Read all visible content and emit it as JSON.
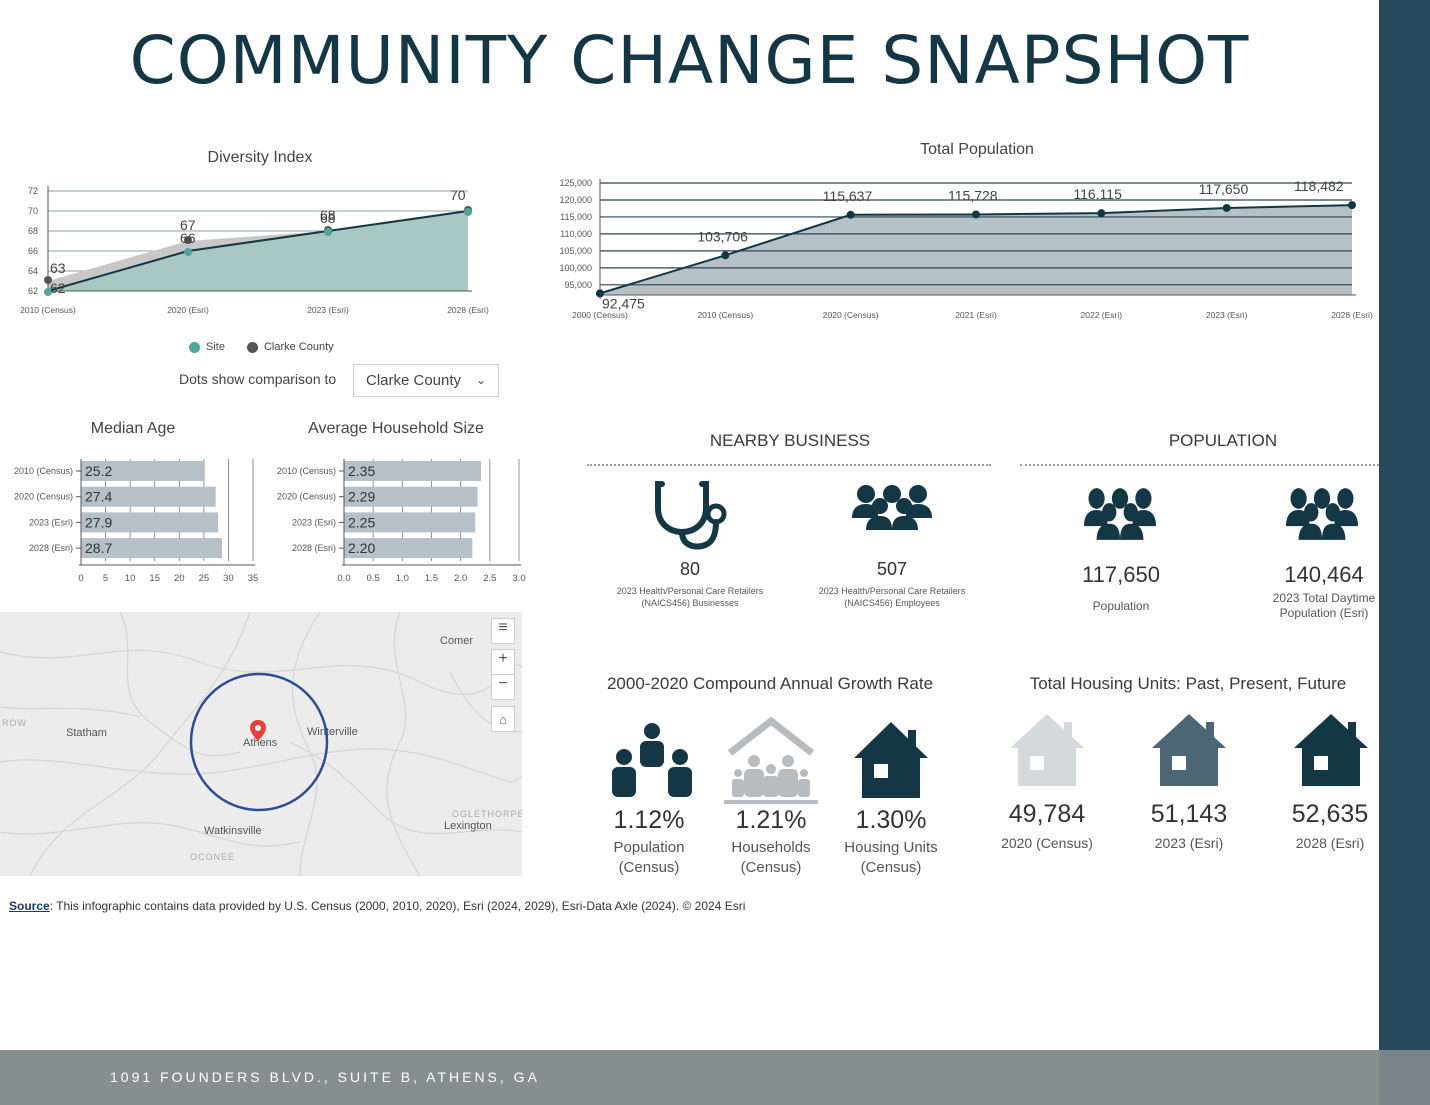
{
  "title": "COMMUNITY CHANGE SNAPSHOT",
  "footer": {
    "address": "1091 FOUNDERS BLVD., SUITE B, ATHENS, GA"
  },
  "colors": {
    "site": "#4ea79b",
    "county": "#555555",
    "bar": "#b6c0c7",
    "dark": "#143746",
    "accent": "#264a5c"
  },
  "diversity": {
    "title": "Diversity Index",
    "legend": {
      "site": "Site",
      "county": "Clarke County"
    },
    "comparison_label": "Dots show comparison to",
    "comparison_value": "Clarke County"
  },
  "total_population": {
    "title": "Total Population"
  },
  "median_age": {
    "title": "Median Age"
  },
  "household_size": {
    "title": "Average Household Size"
  },
  "nearby_business": {
    "title": "NEARBY BUSINESS",
    "items": [
      {
        "icon": "stethoscope-icon",
        "value": "80",
        "label_line1": "2023 Health/Personal Care Retailers",
        "label_line2": "(NAICS456) Businesses"
      },
      {
        "icon": "people-group-icon",
        "value": "507",
        "label_line1": "2023 Health/Personal Care Retailers",
        "label_line2": "(NAICS456) Employees"
      }
    ]
  },
  "population": {
    "title": "POPULATION",
    "items": [
      {
        "icon": "people-group-icon",
        "value": "117,650",
        "label_line1": "Population",
        "label_line2": ""
      },
      {
        "icon": "people-group-icon",
        "value": "140,464",
        "label_line1": "2023 Total Daytime",
        "label_line2": "Population (Esri)"
      }
    ]
  },
  "growth": {
    "title": "2000-2020 Compound Annual Growth Rate",
    "items": [
      {
        "icon": "population-icon",
        "value": "1.12%",
        "label_line1": "Population",
        "label_line2": "(Census)"
      },
      {
        "icon": "households-icon",
        "value": "1.21%",
        "label_line1": "Households",
        "label_line2": "(Census)"
      },
      {
        "icon": "house-icon",
        "value": "1.30%",
        "label_line1": "Housing Units",
        "label_line2": "(Census)"
      }
    ]
  },
  "housing": {
    "title": "Total Housing Units: Past, Present, Future",
    "items": [
      {
        "icon": "house-icon",
        "color": "#d4d9dc",
        "value": "49,784",
        "label": "2020 (Census)"
      },
      {
        "icon": "house-icon",
        "color": "#4d6675",
        "value": "51,143",
        "label": "2023 (Esri)"
      },
      {
        "icon": "house-icon",
        "color": "#143746",
        "value": "52,635",
        "label": "2028 (Esri)"
      }
    ]
  },
  "map": {
    "labels": [
      "Comer",
      "Statham",
      "Athens",
      "Winterville",
      "Watkinsville",
      "Lexington",
      "OCONEE",
      "OGLETHORPE",
      "ROW"
    ]
  },
  "source": {
    "link": "Source",
    "text": ": This infographic contains data provided by U.S. Census (2000, 2010, 2020), Esri (2024, 2029), Esri-Data Axle (2024). © 2024 Esri"
  },
  "chart_data": [
    {
      "type": "area",
      "title": "Diversity Index",
      "categories": [
        "2010 (Census)",
        "2020 (Esri)",
        "2023 (Esri)",
        "2028 (Esri)"
      ],
      "series": [
        {
          "name": "Site",
          "values": [
            62,
            66,
            68,
            70
          ]
        },
        {
          "name": "Clarke County",
          "values": [
            63,
            67,
            68,
            70
          ]
        }
      ],
      "data_labels_site": [
        "62",
        "66",
        "68",
        "70"
      ],
      "data_labels_county": [
        "63",
        "67",
        "68",
        "70"
      ],
      "ylim": [
        62,
        72
      ],
      "yticks": [
        62,
        64,
        66,
        68,
        70,
        72
      ],
      "legend": "bottom"
    },
    {
      "type": "area",
      "title": "Total Population",
      "categories": [
        "2000 (Census)",
        "2010 (Census)",
        "2020 (Census)",
        "2021 (Esri)",
        "2022 (Esri)",
        "2023 (Esri)",
        "2028 (Esri)"
      ],
      "values": [
        92475,
        103706,
        115637,
        115728,
        116115,
        117650,
        118482
      ],
      "data_labels": [
        "92,475",
        "103,706",
        "115,637",
        "115,728",
        "116,115",
        "117,650",
        "118,482"
      ],
      "ylim": [
        92000,
        125000
      ],
      "yticks": [
        95000,
        100000,
        105000,
        110000,
        115000,
        120000,
        125000
      ],
      "ytick_labels": [
        "95,000",
        "100,000",
        "105,000",
        "110,000",
        "115,000",
        "120,000",
        "125,000"
      ]
    },
    {
      "type": "bar",
      "title": "Median Age",
      "categories": [
        "2010 (Census)",
        "2020 (Census)",
        "2023 (Esri)",
        "2028 (Esri)"
      ],
      "values": [
        25.2,
        27.4,
        27.9,
        28.7
      ],
      "data_labels": [
        "25.2",
        "27.4",
        "27.9",
        "28.7"
      ],
      "xlim": [
        0,
        35
      ],
      "xticks": [
        0,
        5,
        10,
        15,
        20,
        25,
        30,
        35
      ],
      "xtick_labels": [
        "0",
        "5",
        "10",
        "15",
        "20",
        "25",
        "30",
        "35"
      ]
    },
    {
      "type": "bar",
      "title": "Average Household Size",
      "categories": [
        "2010 (Census)",
        "2020 (Census)",
        "2023 (Esri)",
        "2028 (Esri)"
      ],
      "values": [
        2.35,
        2.29,
        2.25,
        2.2
      ],
      "data_labels": [
        "2.35",
        "2.29",
        "2.25",
        "2.20"
      ],
      "xlim": [
        0,
        3.0
      ],
      "xticks": [
        0,
        0.5,
        1.0,
        1.5,
        2.0,
        2.5,
        3.0
      ],
      "xtick_labels": [
        "0.0",
        "0.5",
        "1.0",
        "1.5",
        "2.0",
        "2.5",
        "3.0"
      ]
    }
  ]
}
